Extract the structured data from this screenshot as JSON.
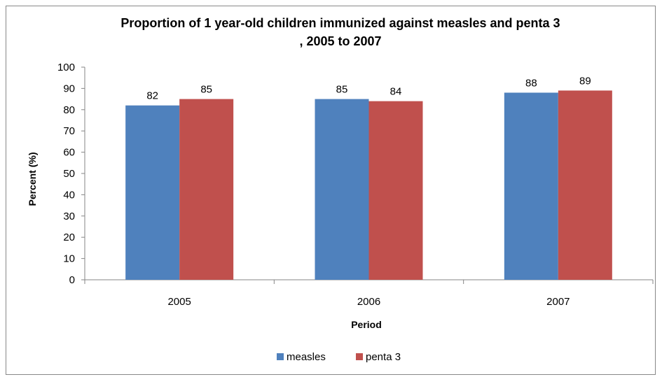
{
  "chart_data": {
    "type": "bar",
    "title_lines": [
      "Proportion of 1 year-old children immunized against measles and penta 3",
      ", 2005 to 2007"
    ],
    "xlabel": "Period",
    "ylabel": "Percent (%)",
    "categories": [
      "2005",
      "2006",
      "2007"
    ],
    "ylim": [
      0,
      100
    ],
    "yticks": [
      0,
      10,
      20,
      30,
      40,
      50,
      60,
      70,
      80,
      90,
      100
    ],
    "grid": false,
    "legend_position": "bottom",
    "series": [
      {
        "name": "measles",
        "color": "#4F81BD",
        "values": [
          82,
          85,
          88
        ]
      },
      {
        "name": "penta 3",
        "color": "#C0504D",
        "values": [
          85,
          84,
          89
        ]
      }
    ]
  }
}
